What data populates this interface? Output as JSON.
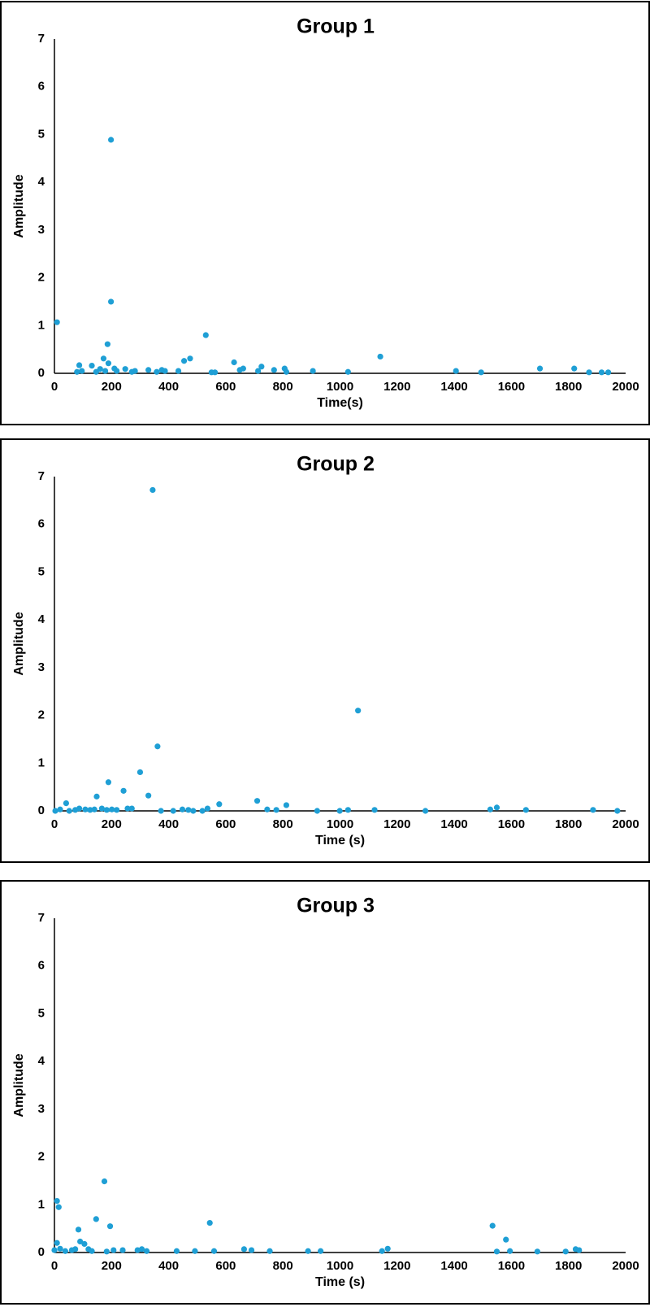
{
  "chart_data": [
    {
      "type": "scatter",
      "title": "Group 1",
      "x_label": "Time(s)",
      "y_label": "Amplitude",
      "color": "#1f9fd5",
      "xlim": [
        0,
        2000
      ],
      "ylim": [
        0,
        7
      ],
      "xticks": [
        0,
        200,
        400,
        600,
        800,
        1000,
        1200,
        1400,
        1600,
        1800,
        2000
      ],
      "yticks": [
        0,
        1,
        2,
        3,
        4,
        5,
        6,
        7
      ],
      "grid": false,
      "x": [
        9,
        198,
        198,
        186,
        530,
        475,
        454,
        629,
        1141,
        87,
        131,
        172,
        189,
        210,
        79,
        96,
        146,
        160,
        178,
        218,
        248,
        271,
        282,
        329,
        358,
        376,
        387,
        434,
        550,
        562,
        649,
        661,
        713,
        725,
        769,
        806,
        812,
        905,
        1028,
        1406,
        1494,
        1700,
        1820,
        1872,
        1916,
        1939
      ],
      "values": [
        1.07,
        4.89,
        1.5,
        0.61,
        0.8,
        0.31,
        0.26,
        0.23,
        0.35,
        0.17,
        0.16,
        0.31,
        0.21,
        0.1,
        0.03,
        0.05,
        0.03,
        0.09,
        0.05,
        0.05,
        0.09,
        0.03,
        0.05,
        0.07,
        0.03,
        0.07,
        0.05,
        0.05,
        0.02,
        0.02,
        0.07,
        0.1,
        0.05,
        0.14,
        0.07,
        0.1,
        0.03,
        0.05,
        0.03,
        0.05,
        0.02,
        0.1,
        0.1,
        0.02,
        0.02,
        0.02
      ]
    },
    {
      "type": "scatter",
      "title": "Group 2",
      "x_label": "Time (s)",
      "y_label": "Amplitude",
      "color": "#1f9fd5",
      "xlim": [
        0,
        2000
      ],
      "ylim": [
        0,
        7
      ],
      "xticks": [
        0,
        200,
        400,
        600,
        800,
        1000,
        1200,
        1400,
        1600,
        1800,
        2000
      ],
      "yticks": [
        0,
        1,
        2,
        3,
        4,
        5,
        6,
        7
      ],
      "grid": false,
      "x": [
        344,
        1063,
        361,
        300,
        189,
        242,
        148,
        329,
        710,
        577,
        812,
        41,
        1549,
        3,
        20,
        52,
        73,
        87,
        108,
        125,
        140,
        166,
        183,
        201,
        218,
        256,
        271,
        373,
        416,
        448,
        469,
        486,
        518,
        536,
        745,
        777,
        920,
        999,
        1028,
        1121,
        1299,
        1526,
        1651,
        1886,
        1971
      ],
      "values": [
        6.72,
        2.1,
        1.35,
        0.81,
        0.6,
        0.42,
        0.3,
        0.32,
        0.21,
        0.14,
        0.12,
        0.16,
        0.07,
        0,
        0.03,
        0,
        0.02,
        0.05,
        0.03,
        0.02,
        0.03,
        0.05,
        0.02,
        0.03,
        0.02,
        0.05,
        0.05,
        0,
        0,
        0.03,
        0.02,
        0,
        0,
        0.05,
        0.03,
        0.02,
        0,
        0,
        0.02,
        0.02,
        0,
        0.03,
        0.02,
        0.02,
        0
      ]
    },
    {
      "type": "scatter",
      "title": "Group 3",
      "x_label": "Time (s)",
      "y_label": "Amplitude",
      "color": "#1f9fd5",
      "xlim": [
        0,
        2000
      ],
      "ylim": [
        0,
        7
      ],
      "xticks": [
        0,
        200,
        400,
        600,
        800,
        1000,
        1200,
        1400,
        1600,
        1800,
        2000
      ],
      "yticks": [
        0,
        1,
        2,
        3,
        4,
        5,
        6,
        7
      ],
      "grid": false,
      "x": [
        9,
        15,
        175,
        146,
        195,
        544,
        1534,
        1581,
        84,
        90,
        105,
        9,
        0,
        20,
        38,
        61,
        73,
        119,
        131,
        183,
        207,
        239,
        291,
        306,
        323,
        428,
        492,
        559,
        664,
        690,
        754,
        888,
        932,
        1147,
        1167,
        1549,
        1595,
        1691,
        1790,
        1825,
        1837
      ],
      "values": [
        1.08,
        0.95,
        1.49,
        0.7,
        0.55,
        0.62,
        0.56,
        0.27,
        0.48,
        0.23,
        0.18,
        0.2,
        0.05,
        0.08,
        0.03,
        0.05,
        0.07,
        0.07,
        0.03,
        0.02,
        0.05,
        0.05,
        0.05,
        0.07,
        0.03,
        0.03,
        0.03,
        0.03,
        0.07,
        0.05,
        0.03,
        0.03,
        0.03,
        0.03,
        0.08,
        0.02,
        0.03,
        0.02,
        0.02,
        0.07,
        0.05
      ]
    }
  ]
}
